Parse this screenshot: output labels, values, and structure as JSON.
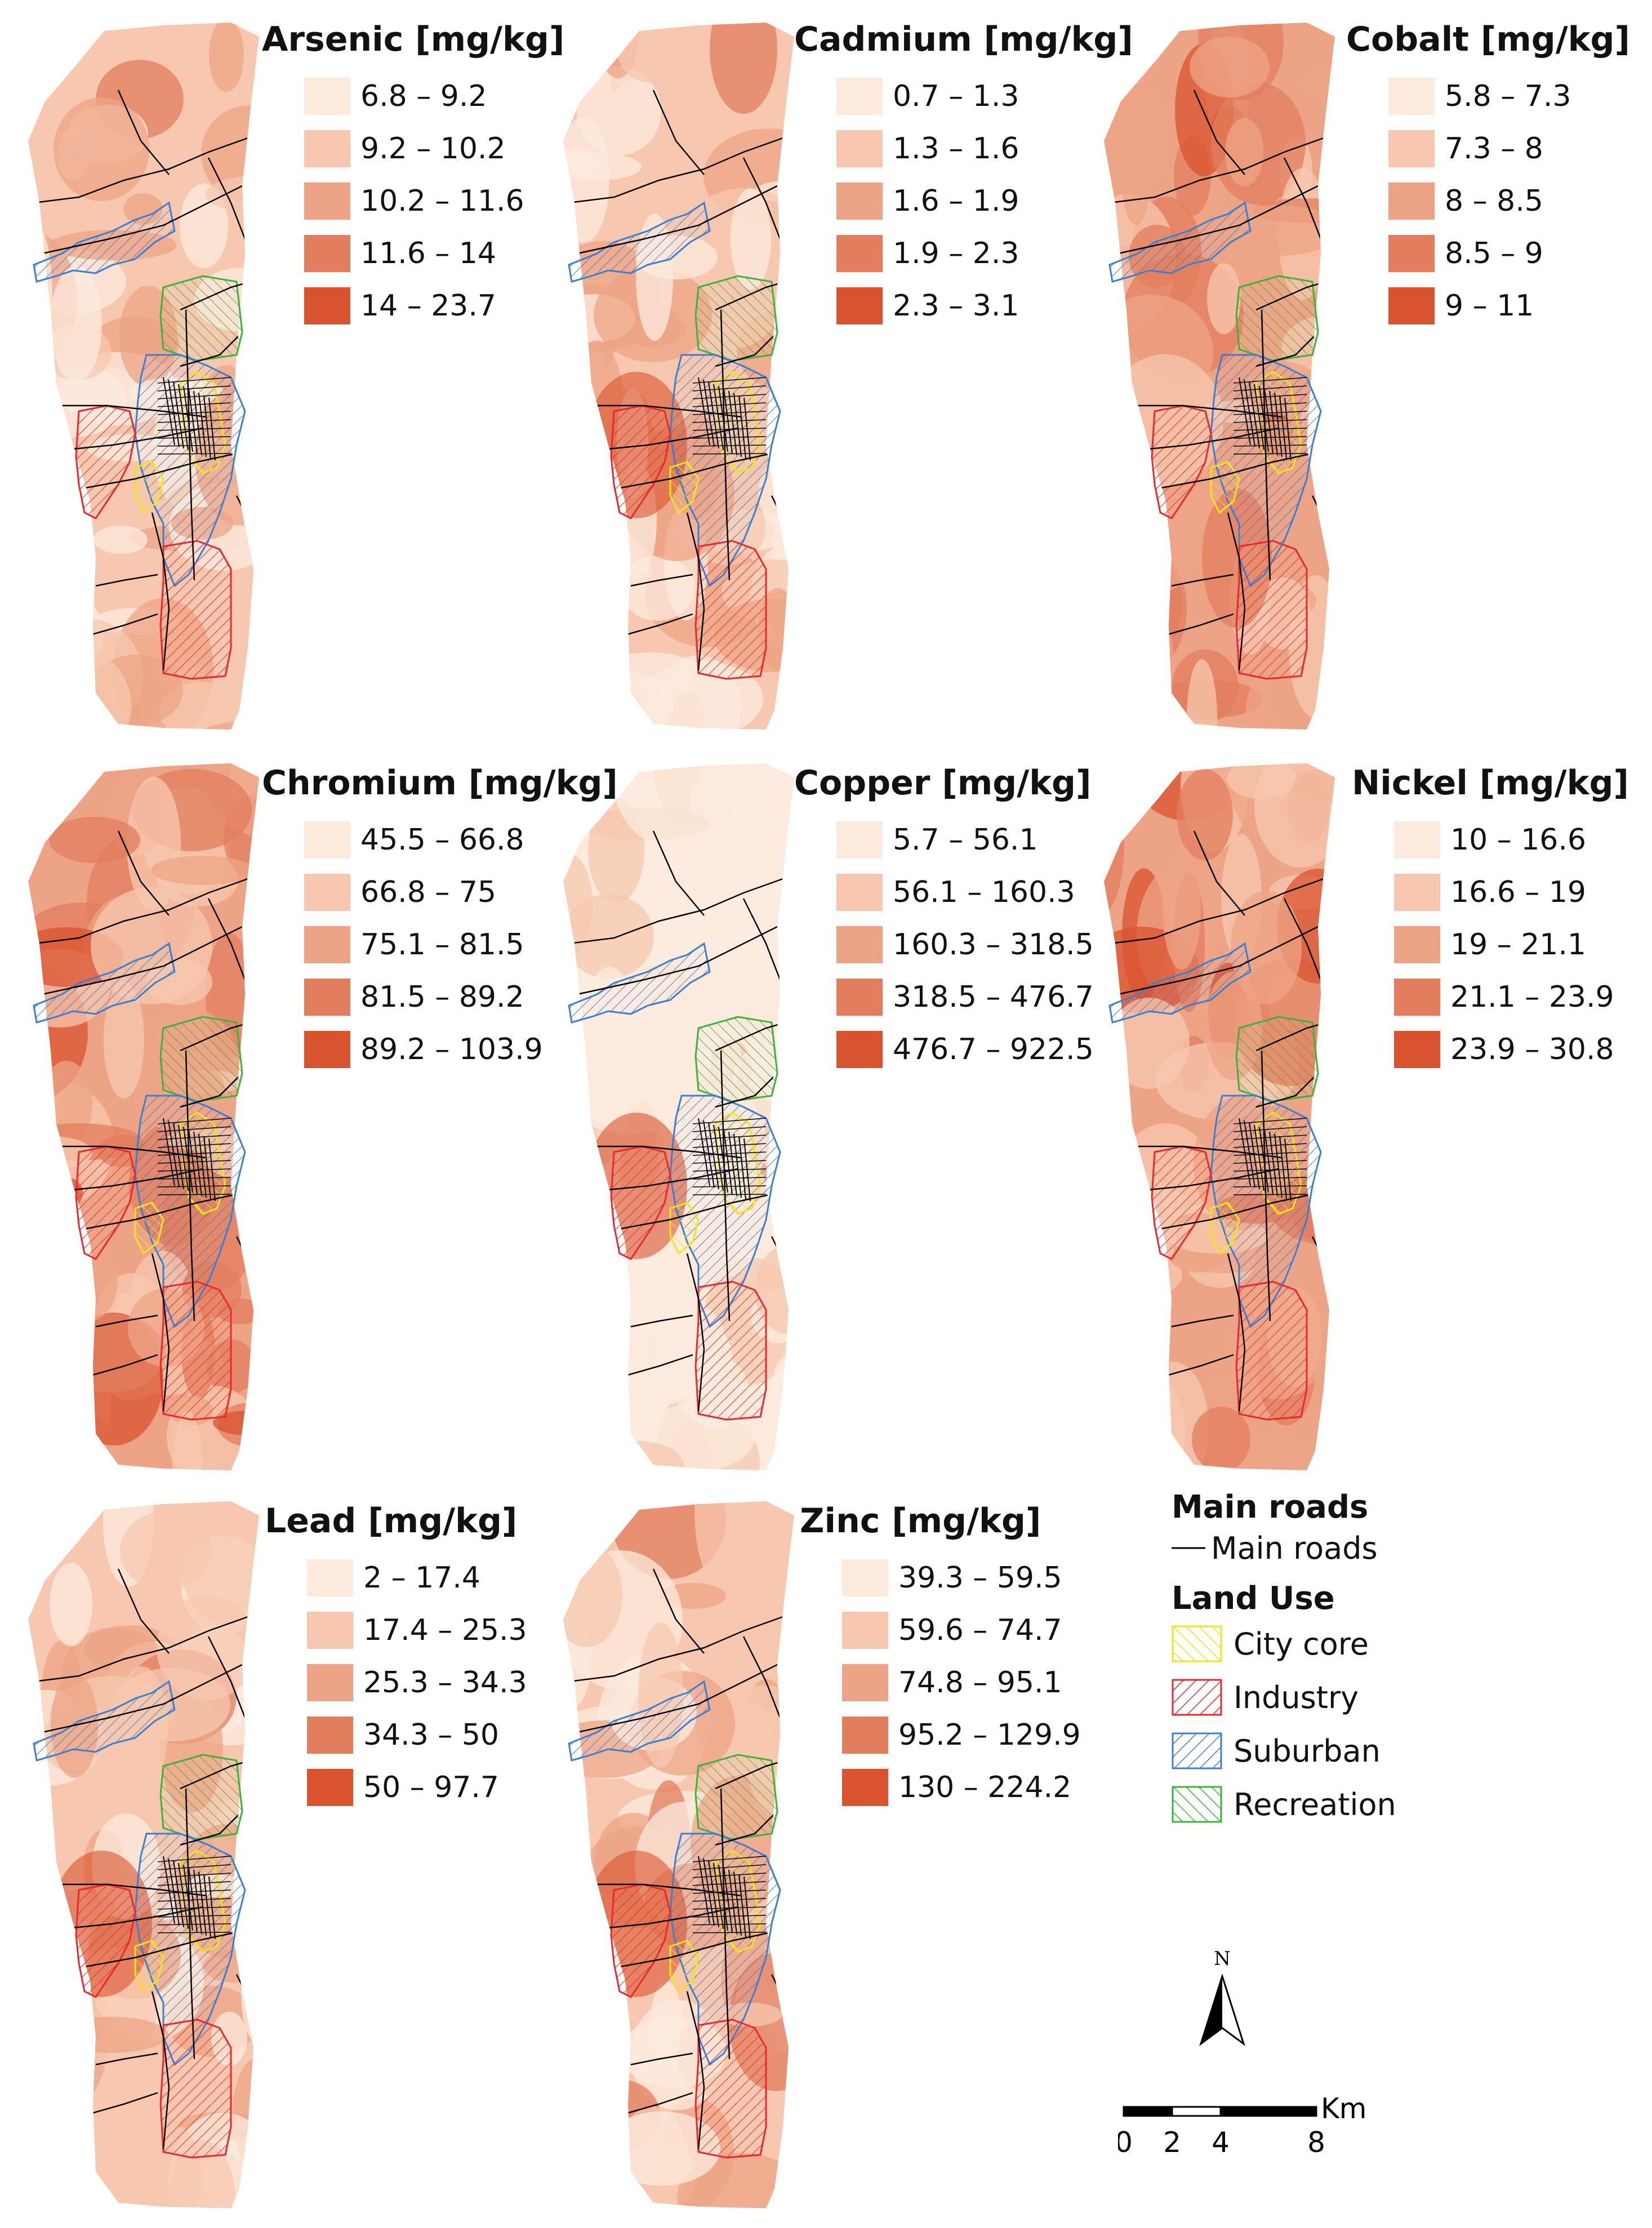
{
  "panels": [
    {
      "id": "arsenic",
      "title": "Arsenic [mg/kg]",
      "classes": [
        "6.8 – 9.2",
        "9.2 – 10.2",
        "10.2 – 11.6",
        "11.6 – 14",
        "14 – 23.7"
      ]
    },
    {
      "id": "cadmium",
      "title": "Cadmium [mg/kg]",
      "classes": [
        "0.7 – 1.3",
        "1.3 – 1.6",
        "1.6 – 1.9",
        "1.9 – 2.3",
        "2.3 – 3.1"
      ]
    },
    {
      "id": "cobalt",
      "title": "Cobalt [mg/kg]",
      "classes": [
        "5.8 – 7.3",
        "7.3 – 8",
        "8 – 8.5",
        "8.5 – 9",
        "9 – 11"
      ]
    },
    {
      "id": "chromium",
      "title": "Chromium [mg/kg]",
      "classes": [
        "45.5 – 66.8",
        "66.8 – 75",
        "75.1 – 81.5",
        "81.5 – 89.2",
        "89.2 – 103.9"
      ]
    },
    {
      "id": "copper",
      "title": "Copper [mg/kg]",
      "classes": [
        "5.7 – 56.1",
        "56.1 – 160.3",
        "160.3 – 318.5",
        "318.5 – 476.7",
        "476.7 – 922.5"
      ]
    },
    {
      "id": "nickel",
      "title": "Nickel [mg/kg]",
      "classes": [
        "10 – 16.6",
        "16.6 – 19",
        "19 – 21.1",
        "21.1 – 23.9",
        "23.9 – 30.8"
      ]
    },
    {
      "id": "lead",
      "title": "Lead [mg/kg]",
      "classes": [
        "2 – 17.4",
        "17.4 – 25.3",
        "25.3 – 34.3",
        "34.3 – 50",
        "50 – 97.7"
      ]
    },
    {
      "id": "zinc",
      "title": "Zinc [mg/kg]",
      "classes": [
        "39.3 – 59.5",
        "59.6 – 74.7",
        "74.8 – 95.1",
        "95.2 – 129.9",
        "130 – 224.2"
      ]
    }
  ],
  "class_colors": [
    "#fcebdd",
    "#f7c8af",
    "#eda486",
    "#e27e5e",
    "#d9532f"
  ],
  "legend": {
    "roads_title": "Main roads",
    "roads_label": "Main roads",
    "landuse_title": "Land Use",
    "landuse": [
      {
        "label": "City core",
        "color": "#f2e41c"
      },
      {
        "label": "Industry",
        "color": "#e8292d"
      },
      {
        "label": "Suburban",
        "color": "#3c7fd0"
      },
      {
        "label": "Recreation",
        "color": "#3fb23a"
      }
    ]
  },
  "north_label": "N",
  "scale": {
    "unit": "Km",
    "ticks": [
      "0",
      "2",
      "4",
      "8"
    ]
  }
}
